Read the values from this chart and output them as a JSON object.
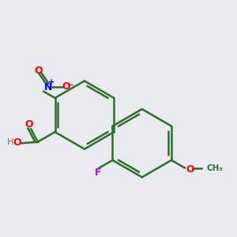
{
  "bg_color": "#e8eaf0",
  "bond_color": "#2d6e2d",
  "bond_width": 1.8,
  "colors": {
    "O": "#ff0000",
    "N": "#0000ff",
    "F": "#cc00cc",
    "C_bond": "#2d6e2d",
    "H": "#777777"
  }
}
